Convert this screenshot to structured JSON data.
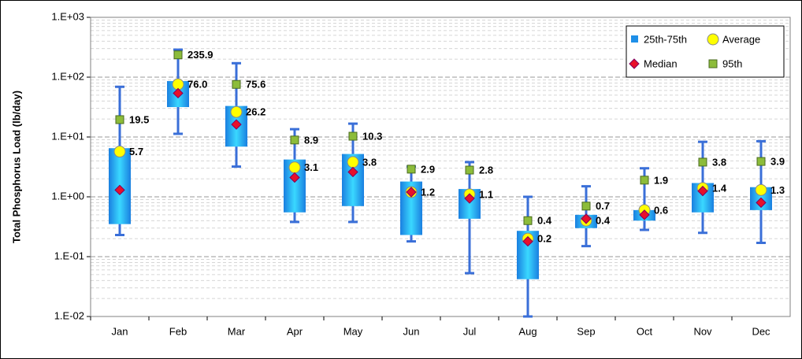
{
  "chart_data": {
    "type": "box",
    "y_label": "Total Phosphorus Load (lb/day)",
    "y_log": true,
    "grid": true,
    "minor_grid": true,
    "legend_position": "top-right",
    "categories": [
      "Jan",
      "Feb",
      "Mar",
      "Apr",
      "May",
      "Jun",
      "Jul",
      "Aug",
      "Sep",
      "Oct",
      "Nov",
      "Dec"
    ],
    "ylim": [
      0.01,
      1000
    ],
    "yticks": [
      {
        "value": 1000,
        "label": "1.E+03"
      },
      {
        "value": 100,
        "label": "1.E+02"
      },
      {
        "value": 10,
        "label": "1.E+01"
      },
      {
        "value": 1,
        "label": "1.E+00"
      },
      {
        "value": 0.1,
        "label": "1.E-01"
      },
      {
        "value": 0.01,
        "label": "1.E-02"
      }
    ],
    "box": {
      "name": "25th-75th",
      "color": "#1e8fe8",
      "q1": [
        0.35,
        31.6,
        6.9,
        0.55,
        0.7,
        0.23,
        0.43,
        0.042,
        0.3,
        0.4,
        0.55,
        0.6
      ],
      "q3": [
        6.5,
        86,
        33,
        4.2,
        5.2,
        1.8,
        1.35,
        0.27,
        0.5,
        0.6,
        1.7,
        1.45
      ]
    },
    "whiskers": {
      "color": "#3a6fd8",
      "low": [
        0.23,
        11.3,
        3.2,
        0.38,
        0.38,
        0.18,
        0.053,
        0.01,
        0.15,
        0.28,
        0.25,
        0.17
      ],
      "high": [
        69,
        288,
        171,
        13.5,
        16.7,
        3.2,
        3.8,
        1.0,
        1.5,
        3.0,
        8.3,
        8.5
      ]
    },
    "series": [
      {
        "name": "Average",
        "color": "#ffff00",
        "marker": "circle",
        "values": [
          5.7,
          76.0,
          26.2,
          3.1,
          3.8,
          1.2,
          1.1,
          0.2,
          0.4,
          0.6,
          1.4,
          1.3
        ],
        "value_labels": [
          "5.7",
          "76.0",
          "26.2",
          "3.1",
          "3.8",
          "1.2",
          "1.1",
          "0.2",
          "0.4",
          "0.6",
          "1.4",
          "1.3"
        ]
      },
      {
        "name": "Median",
        "color": "#e8102a",
        "marker": "diamond",
        "values": [
          1.3,
          54,
          16.2,
          2.1,
          2.6,
          1.2,
          0.94,
          0.18,
          0.43,
          0.5,
          1.25,
          0.8
        ]
      },
      {
        "name": "95th",
        "color": "#8cbc3a",
        "marker": "square",
        "values": [
          19.5,
          235.9,
          75.6,
          8.9,
          10.3,
          2.9,
          2.8,
          0.4,
          0.7,
          1.9,
          3.8,
          3.9
        ],
        "value_labels": [
          "19.5",
          "235.9",
          "75.6",
          "8.9",
          "10.3",
          "2.9",
          "2.8",
          "0.4",
          "0.7",
          "1.9",
          "3.8",
          "3.9"
        ]
      }
    ]
  }
}
